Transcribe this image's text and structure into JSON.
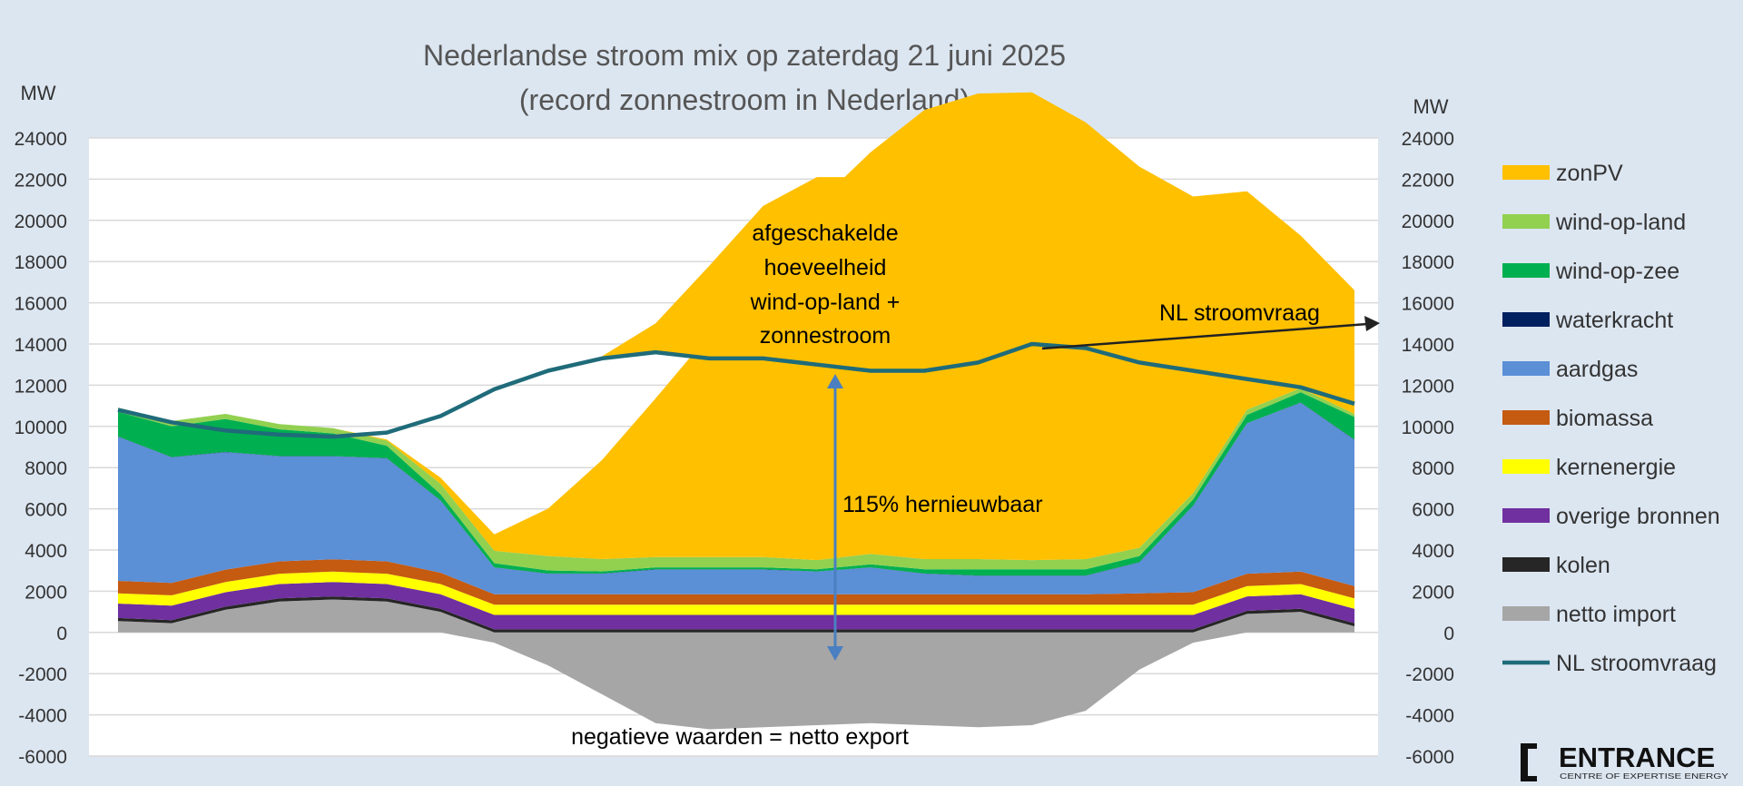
{
  "chart_data": {
    "type": "area",
    "title": "Nederlandse stroom mix op zaterdag 21 juni 2025",
    "subtitle": "(record zonnestroom in Nederland)",
    "ylabel_left": "MW",
    "ylabel_right": "MW",
    "ylim": [
      -6000,
      24000
    ],
    "yticks": [
      24000,
      22000,
      20000,
      18000,
      16000,
      14000,
      12000,
      10000,
      8000,
      6000,
      4000,
      2000,
      0,
      -2000,
      -4000,
      -6000
    ],
    "x_hours": [
      0.5,
      1.5,
      2.5,
      3.5,
      4.5,
      5.5,
      6.5,
      7.5,
      8.5,
      9.5,
      10.5,
      11.5,
      12.5,
      13.5,
      14.5,
      15.5,
      16.5,
      17.5,
      18.5,
      19.5,
      20.5,
      21.5,
      22.5,
      23.5
    ],
    "legend_position": "right",
    "grid": true,
    "stack_order": [
      "netto_import",
      "kolen",
      "overige_bronnen",
      "kernenergie",
      "biomassa",
      "aardgas",
      "waterkracht",
      "wind_op_zee",
      "wind_op_land",
      "zonPV"
    ],
    "series": [
      {
        "key": "zonPV",
        "name": "zonPV",
        "color": "#ffc000",
        "values": [
          0,
          0,
          0,
          0,
          0,
          50,
          300,
          800,
          2300,
          4800,
          7700,
          10800,
          14200,
          17300,
          19500,
          21800,
          22600,
          22700,
          21200,
          18500,
          14400,
          10600,
          7400,
          6000
        ]
      },
      {
        "key": "wind_op_land",
        "name": "wind-op-land",
        "color": "#92d050",
        "values": [
          200,
          250,
          250,
          250,
          250,
          250,
          500,
          600,
          700,
          600,
          500,
          500,
          500,
          450,
          500,
          500,
          500,
          450,
          500,
          400,
          300,
          250,
          200,
          150
        ]
      },
      {
        "key": "wind_op_zee",
        "name": "wind-op-zee",
        "color": "#00b050",
        "values": [
          1200,
          1500,
          1600,
          1300,
          1100,
          600,
          300,
          200,
          150,
          100,
          100,
          100,
          100,
          100,
          150,
          200,
          300,
          300,
          300,
          300,
          300,
          400,
          500,
          1100
        ]
      },
      {
        "key": "waterkracht",
        "name": "waterkracht",
        "color": "#002060",
        "values": [
          10,
          10,
          10,
          10,
          10,
          10,
          10,
          10,
          10,
          10,
          10,
          10,
          10,
          10,
          10,
          10,
          10,
          10,
          10,
          10,
          10,
          10,
          10,
          10
        ]
      },
      {
        "key": "aardgas",
        "name": "aardgas",
        "color": "#5b8fd6",
        "values": [
          7000,
          6100,
          5700,
          5100,
          5000,
          5000,
          3500,
          1300,
          1000,
          1000,
          1200,
          1200,
          1200,
          1100,
          1300,
          1000,
          900,
          900,
          900,
          1500,
          4200,
          7300,
          8200,
          7100
        ]
      },
      {
        "key": "biomassa",
        "name": "biomassa",
        "color": "#c55a11",
        "values": [
          600,
          600,
          600,
          600,
          600,
          600,
          550,
          500,
          500,
          500,
          500,
          500,
          500,
          500,
          500,
          500,
          500,
          500,
          500,
          550,
          600,
          600,
          600,
          600
        ]
      },
      {
        "key": "kernenergie",
        "name": "kernenergie",
        "color": "#ffff00",
        "values": [
          500,
          500,
          500,
          500,
          500,
          500,
          500,
          500,
          500,
          500,
          500,
          500,
          500,
          500,
          500,
          500,
          500,
          500,
          500,
          500,
          500,
          500,
          500,
          500
        ]
      },
      {
        "key": "overige_bronnen",
        "name": "overige bronnen",
        "color": "#7030a0",
        "values": [
          700,
          700,
          700,
          700,
          700,
          700,
          700,
          700,
          700,
          700,
          700,
          700,
          700,
          700,
          700,
          700,
          700,
          700,
          700,
          700,
          700,
          700,
          700,
          700
        ]
      },
      {
        "key": "kolen",
        "name": "kolen",
        "color": "#262626",
        "values": [
          150,
          150,
          150,
          150,
          150,
          150,
          150,
          150,
          150,
          150,
          150,
          150,
          150,
          150,
          150,
          150,
          150,
          150,
          150,
          150,
          150,
          150,
          150,
          150
        ]
      },
      {
        "key": "netto_import",
        "name": "netto import",
        "color": "#a6a6a6",
        "values": [
          550,
          450,
          1100,
          1500,
          1600,
          1500,
          1000,
          -500,
          -1600,
          -3000,
          -4400,
          -4700,
          -4600,
          -4500,
          -4400,
          -4500,
          -4600,
          -4500,
          -3800,
          -1800,
          -500,
          900,
          1000,
          300
        ]
      },
      {
        "key": "nl_stroomvraag",
        "name": "NL stroomvraag",
        "color": "#1f6b7a",
        "type": "line",
        "values": [
          10800,
          10200,
          9800,
          9600,
          9500,
          9700,
          10500,
          11800,
          12700,
          13300,
          13600,
          13300,
          13300,
          13000,
          12700,
          12700,
          13100,
          14000,
          13800,
          13100,
          12700,
          12300,
          11900,
          11100
        ]
      }
    ],
    "annotations": {
      "curtailed": [
        "afgeschakelde",
        "hoeveelheid",
        "wind-op-land +",
        "zonnestroom"
      ],
      "demand_callout": "NL stroomvraag",
      "renewable_share": "115% hernieuwbaar",
      "negative_note": "negatieve waarden = netto export"
    },
    "curtailed_top": [
      null,
      null,
      null,
      null,
      null,
      null,
      null,
      null,
      null,
      13400,
      15000,
      17800,
      20700,
      22100,
      22100,
      20000,
      18000,
      16600,
      15400,
      13800,
      12700,
      null,
      null,
      null
    ]
  },
  "logo": {
    "name": "ENTRANCE",
    "tagline": "CENTRE OF EXPERTISE ENERGY"
  }
}
